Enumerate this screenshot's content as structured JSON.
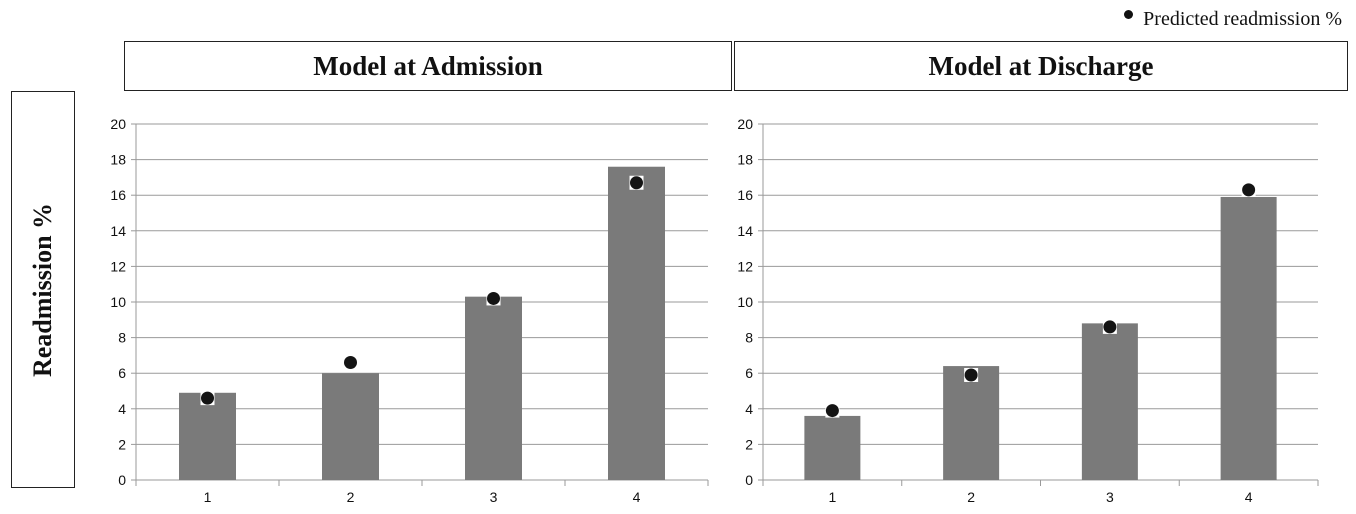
{
  "legend": {
    "label": "Predicted readmission %"
  },
  "ylabel": "Readmission %",
  "colors": {
    "bar": "#7a7a7a",
    "marker": "#141414",
    "grid": "#9a9a9a"
  },
  "chart_data": [
    {
      "type": "bar",
      "title": "Model at Admission",
      "categories": [
        "1",
        "2",
        "3",
        "4"
      ],
      "series": [
        {
          "name": "",
          "values": [
            4.9,
            6.0,
            10.3,
            17.6
          ]
        },
        {
          "name": "Predicted readmission %",
          "values": [
            4.6,
            6.6,
            10.2,
            16.7
          ]
        }
      ],
      "xlabel": "",
      "ylabel": "Readmission %",
      "ylim": [
        0,
        20
      ],
      "yticks": [
        0,
        2,
        4,
        6,
        8,
        10,
        12,
        14,
        16,
        18,
        20
      ],
      "grid": true,
      "legend": "top-right"
    },
    {
      "type": "bar",
      "title": "Model at Discharge",
      "categories": [
        "1",
        "2",
        "3",
        "4"
      ],
      "series": [
        {
          "name": "",
          "values": [
            3.6,
            6.4,
            8.8,
            15.9
          ]
        },
        {
          "name": "Predicted readmission %",
          "values": [
            3.9,
            5.9,
            8.6,
            16.3
          ]
        }
      ],
      "xlabel": "",
      "ylabel": "Readmission %",
      "ylim": [
        0,
        20
      ],
      "yticks": [
        0,
        2,
        4,
        6,
        8,
        10,
        12,
        14,
        16,
        18,
        20
      ],
      "grid": true,
      "legend": "top-right"
    }
  ]
}
